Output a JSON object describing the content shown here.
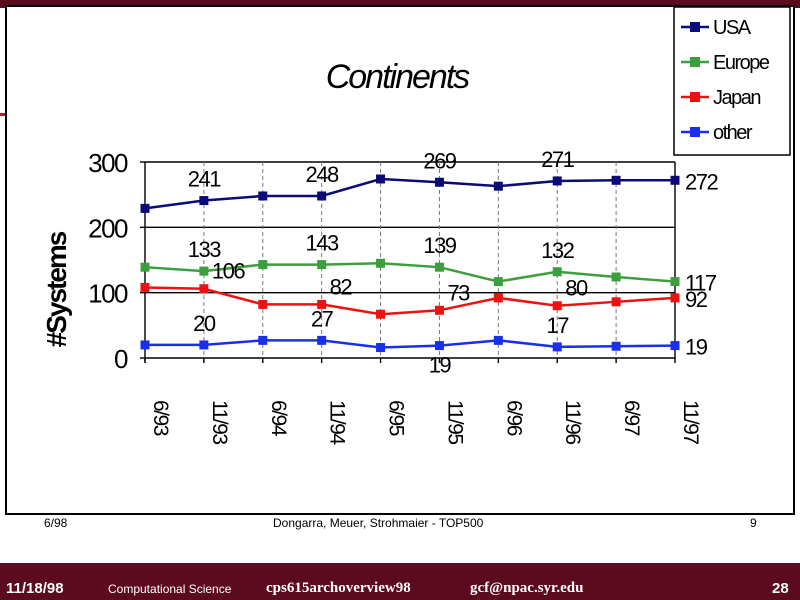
{
  "chart_data": {
    "type": "line",
    "title": "Continents",
    "ylabel": "#Systems",
    "xlabel": "",
    "categories": [
      "6/93",
      "11/93",
      "6/94",
      "11/94",
      "6/95",
      "11/95",
      "6/96",
      "11/96",
      "6/97",
      "11/97"
    ],
    "ylim": [
      0,
      300
    ],
    "yticks": [
      0,
      100,
      200,
      300
    ],
    "grid": "horizontal solid, vertical dashed",
    "legend": "top-right",
    "series": [
      {
        "name": "USA",
        "color": "#0a0a78",
        "values": [
          229,
          241,
          248,
          248,
          274,
          269,
          263,
          271,
          272,
          272
        ],
        "labels": [
          {
            "i": 1,
            "text": "241",
            "pos": "above"
          },
          {
            "i": 3,
            "text": "248",
            "pos": "above"
          },
          {
            "i": 5,
            "text": "269",
            "pos": "above"
          },
          {
            "i": 7,
            "text": "271",
            "pos": "above"
          },
          {
            "i": 9,
            "text": "272",
            "pos": "right"
          }
        ]
      },
      {
        "name": "Europe",
        "color": "#3c9e3c",
        "values": [
          139,
          133,
          143,
          143,
          145,
          139,
          117,
          132,
          124,
          117
        ],
        "labels": [
          {
            "i": 1,
            "text": "133",
            "pos": "above"
          },
          {
            "i": 3,
            "text": "143",
            "pos": "above"
          },
          {
            "i": 5,
            "text": "139",
            "pos": "above"
          },
          {
            "i": 7,
            "text": "132",
            "pos": "above"
          },
          {
            "i": 9,
            "text": "117",
            "pos": "right"
          }
        ]
      },
      {
        "name": "Japan",
        "color": "#ee1111",
        "values": [
          108,
          106,
          82,
          82,
          67,
          73,
          92,
          80,
          86,
          92
        ],
        "labels": [
          {
            "i": 1,
            "text": "106",
            "pos": "right"
          },
          {
            "i": 3,
            "text": "82",
            "pos": "right"
          },
          {
            "i": 5,
            "text": "73",
            "pos": "right"
          },
          {
            "i": 7,
            "text": "80",
            "pos": "right"
          },
          {
            "i": 9,
            "text": "92",
            "pos": "right"
          }
        ]
      },
      {
        "name": "other",
        "color": "#1a2eee",
        "values": [
          20,
          20,
          27,
          27,
          16,
          19,
          27,
          17,
          18,
          19
        ],
        "labels": [
          {
            "i": 1,
            "text": "20",
            "pos": "above"
          },
          {
            "i": 3,
            "text": "27",
            "pos": "above"
          },
          {
            "i": 5,
            "text": "19",
            "pos": "below"
          },
          {
            "i": 7,
            "text": "17",
            "pos": "above"
          },
          {
            "i": 9,
            "text": "19",
            "pos": "right"
          }
        ]
      }
    ]
  },
  "slide_footer": {
    "date": "6/98",
    "authors": "Dongarra, Meuer, Strohmaier - TOP500",
    "page": "9"
  },
  "bottom_bar": {
    "date": "11/18/98",
    "course": "Computational Science",
    "file": "cps615archoverview98",
    "email": "gcf@npac.syr.edu",
    "slide_number": "28"
  },
  "colors": {
    "bar": "#5c0a1e",
    "bar_text": "#ffffff"
  }
}
